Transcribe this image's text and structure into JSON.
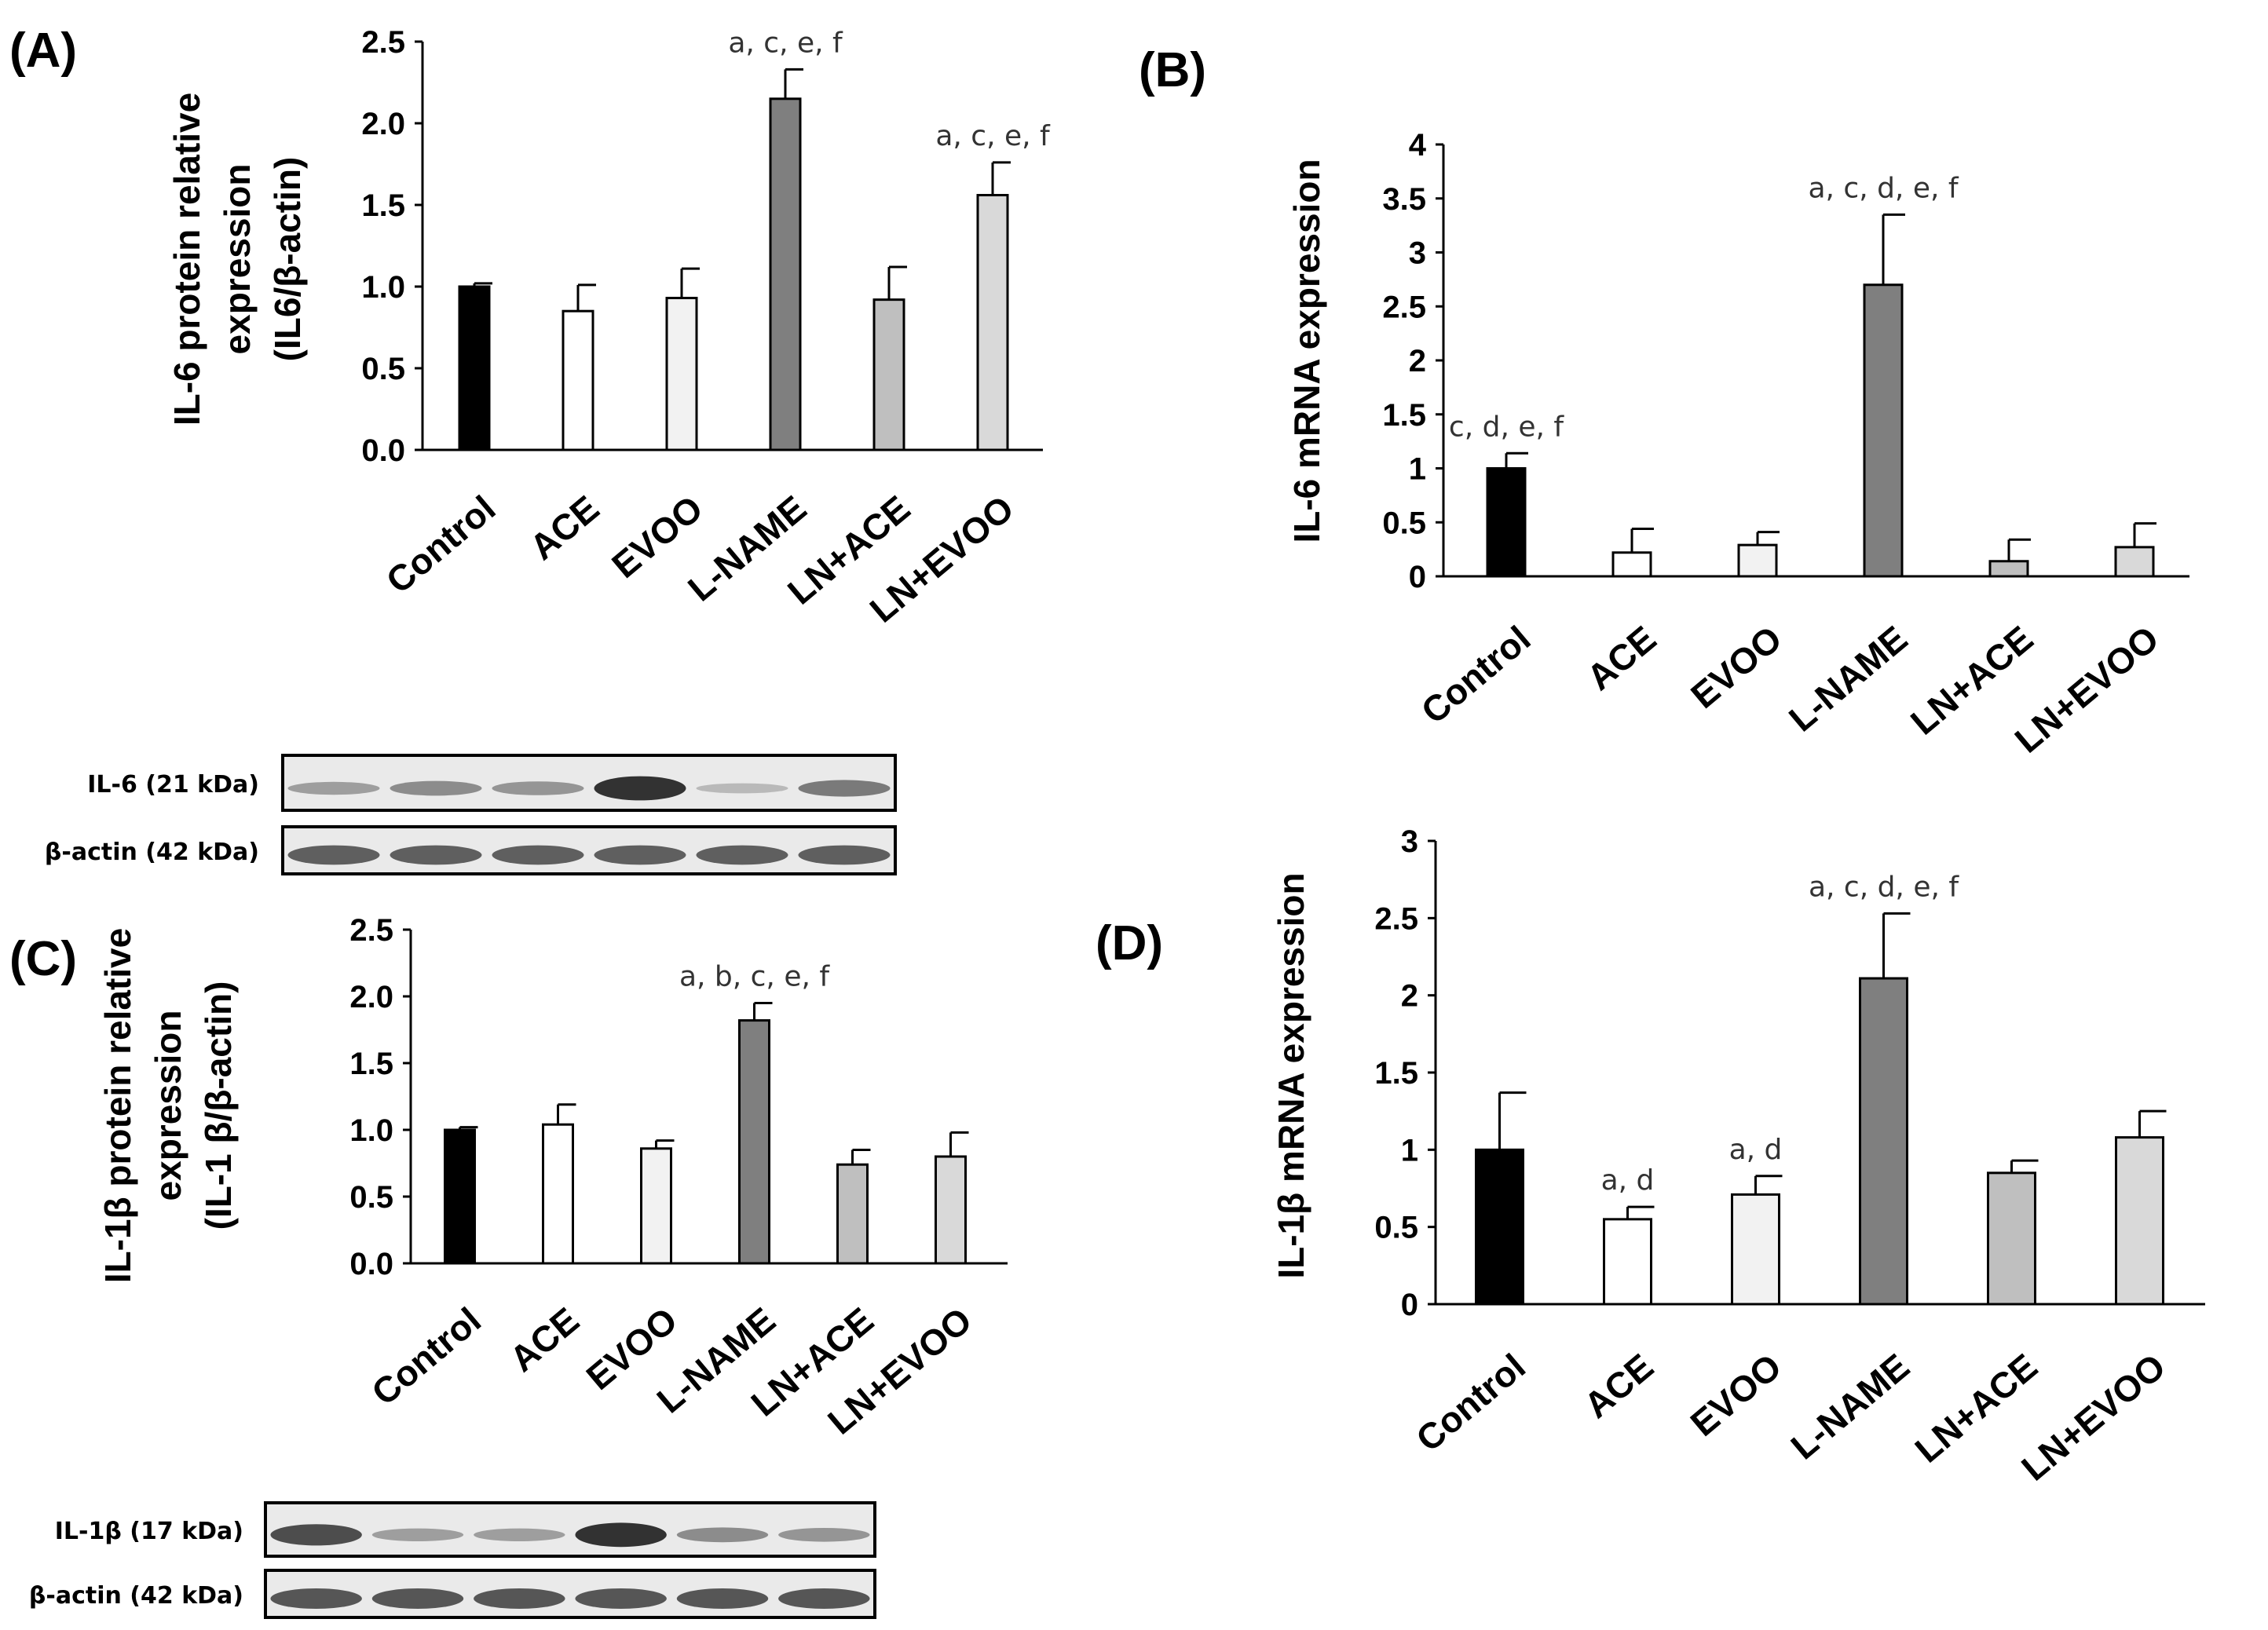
{
  "colors": [
    "#000000",
    "#ffffff",
    "#f2f2f2",
    "#7f7f7f",
    "#bfbfbf",
    "#d9d9d9"
  ],
  "chart_data": [
    {
      "id": "A",
      "type": "bar",
      "panel_label": "(A)",
      "ylabel": [
        "IL-6 protein relative",
        "expression",
        "(IL6/β-actin)"
      ],
      "categories": [
        "Control",
        "ACE",
        "EVOO",
        "L-NAME",
        "LN+ACE",
        "LN+EVOO"
      ],
      "values": [
        1.0,
        0.85,
        0.93,
        2.15,
        0.92,
        1.56
      ],
      "errors": [
        0.02,
        0.16,
        0.18,
        0.18,
        0.2,
        0.2
      ],
      "annotations": [
        "",
        "",
        "",
        "a, c, e, f",
        "",
        "a, c, e, f"
      ],
      "ylim": [
        0,
        2.5
      ],
      "yticks": [
        "0.0",
        "0.5",
        "1.0",
        "1.5",
        "2.0",
        "2.5"
      ]
    },
    {
      "id": "B",
      "type": "bar",
      "panel_label": "(B)",
      "ylabel": [
        "IL-6 mRNA expression"
      ],
      "categories": [
        "Control",
        "ACE",
        "EVOO",
        "L-NAME",
        "LN+ACE",
        "LN+EVOO"
      ],
      "values": [
        1.0,
        0.22,
        0.29,
        2.7,
        0.14,
        0.27
      ],
      "errors": [
        0.14,
        0.22,
        0.12,
        0.65,
        0.2,
        0.22
      ],
      "annotations": [
        "c, d, e, f",
        "",
        "",
        "a, c, d, e, f",
        "",
        ""
      ],
      "ylim": [
        0,
        4
      ],
      "yticks": [
        "0",
        "0.5",
        "1",
        "1.5",
        "2",
        "2.5",
        "3",
        "3.5",
        "4"
      ]
    },
    {
      "id": "C",
      "type": "bar",
      "panel_label": "(C)",
      "ylabel": [
        "IL-1β protein relative",
        "expression",
        "(IL-1 β/β-actin)"
      ],
      "categories": [
        "Control",
        "ACE",
        "EVOO",
        "L-NAME",
        "LN+ACE",
        "LN+EVOO"
      ],
      "values": [
        1.0,
        1.04,
        0.86,
        1.82,
        0.74,
        0.8
      ],
      "errors": [
        0.02,
        0.15,
        0.06,
        0.13,
        0.11,
        0.18
      ],
      "annotations": [
        "",
        "",
        "",
        "a, b, c, e, f",
        "",
        ""
      ],
      "ylim": [
        0,
        2.5
      ],
      "yticks": [
        "0.0",
        "0.5",
        "1.0",
        "1.5",
        "2.0",
        "2.5"
      ]
    },
    {
      "id": "D",
      "type": "bar",
      "panel_label": "(D)",
      "ylabel": [
        "IL-1β mRNA expression"
      ],
      "categories": [
        "Control",
        "ACE",
        "EVOO",
        "L-NAME",
        "LN+ACE",
        "LN+EVOO"
      ],
      "values": [
        1.0,
        0.55,
        0.71,
        2.11,
        0.85,
        1.08
      ],
      "errors": [
        0.37,
        0.08,
        0.12,
        0.42,
        0.08,
        0.17
      ],
      "annotations": [
        "",
        "a, d",
        "a, d",
        "a, c, d, e, f",
        "",
        ""
      ],
      "ylim": [
        0,
        3
      ],
      "yticks": [
        "0",
        "0.5",
        "1",
        "1.5",
        "2",
        "2.5",
        "3"
      ]
    }
  ],
  "blots": [
    {
      "id": "blot-il6",
      "rows": [
        {
          "label": "IL-6 (21 kDa)",
          "intensity": [
            0.35,
            0.45,
            0.4,
            0.95,
            0.2,
            0.55
          ]
        },
        {
          "label": "β-actin (42 kDa)",
          "intensity": [
            0.7,
            0.7,
            0.7,
            0.7,
            0.7,
            0.7
          ]
        }
      ]
    },
    {
      "id": "blot-il1b",
      "rows": [
        {
          "label": "IL-1β (17 kDa)",
          "intensity": [
            0.8,
            0.35,
            0.35,
            0.95,
            0.45,
            0.4
          ]
        },
        {
          "label": "β-actin (42 kDa)",
          "intensity": [
            0.75,
            0.75,
            0.75,
            0.75,
            0.75,
            0.75
          ]
        }
      ]
    }
  ]
}
